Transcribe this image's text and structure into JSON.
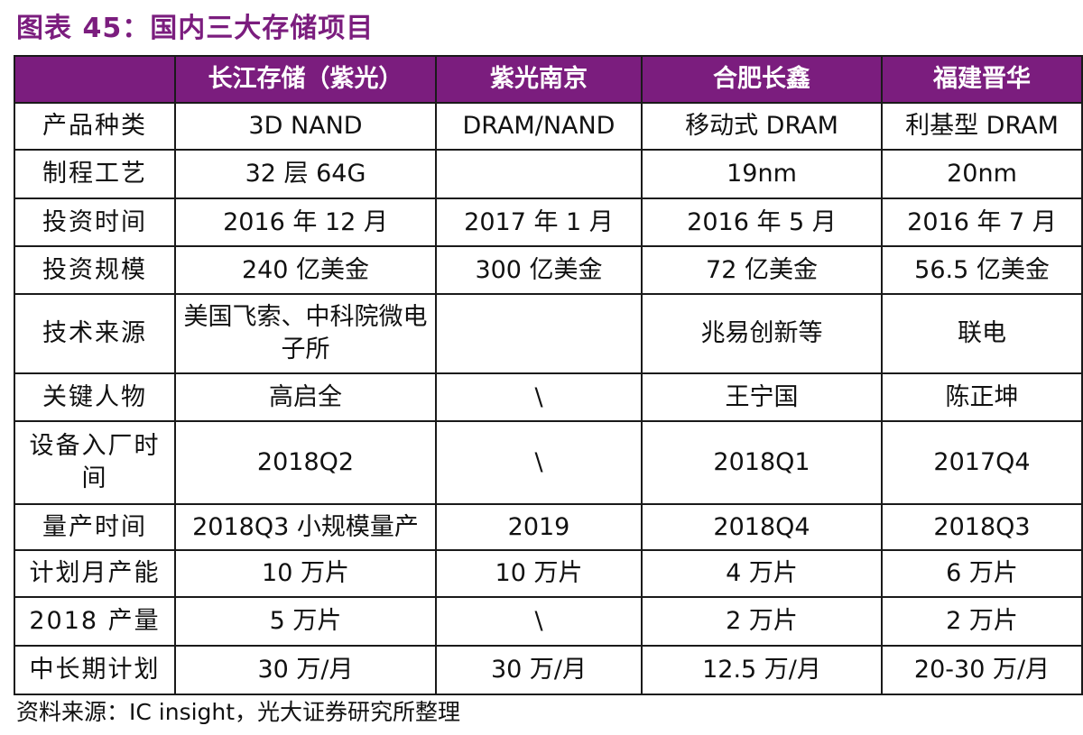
{
  "title": "图表 45：国内三大存储项目",
  "table": {
    "header": [
      "",
      "长江存储（紫光）",
      "紫光南京",
      "合肥长鑫",
      "福建晋华"
    ],
    "rows": [
      [
        "产品种类",
        "3D NAND",
        "DRAM/NAND",
        "移动式 DRAM",
        "利基型 DRAM"
      ],
      [
        "制程工艺",
        "32 层 64G",
        "",
        "19nm",
        "20nm"
      ],
      [
        "投资时间",
        "2016 年 12 月",
        "2017 年 1 月",
        "2016 年 5 月",
        "2016 年 7 月"
      ],
      [
        "投资规模",
        "240 亿美金",
        "300 亿美金",
        "72 亿美金",
        "56.5 亿美金"
      ],
      [
        "技术来源",
        "美国飞索、中科院微电子所",
        "",
        "兆易创新等",
        "联电"
      ],
      [
        "关键人物",
        "高启全",
        "\\",
        "王宁国",
        "陈正坤"
      ],
      [
        "设备入厂时间",
        "2018Q2",
        "\\",
        "2018Q1",
        "2017Q4"
      ],
      [
        "量产时间",
        "2018Q3 小规模量产",
        "2019",
        "2018Q4",
        "2018Q3"
      ],
      [
        "计划月产能",
        "10 万片",
        "10 万片",
        "4 万片",
        "6 万片"
      ],
      [
        "2018 产量",
        "5 万片",
        "\\",
        "2 万片",
        "2 万片"
      ],
      [
        "中长期计划",
        "30 万/月",
        "30 万/月",
        "12.5 万/月",
        "20-30 万/月"
      ]
    ]
  },
  "source": "资料来源：IC insight，光大证券研究所整理",
  "colors": {
    "header_bg": "#7b1d7e",
    "header_text": "#ffffff",
    "title": "#7b1d7e",
    "border": "#1a1a1a"
  }
}
